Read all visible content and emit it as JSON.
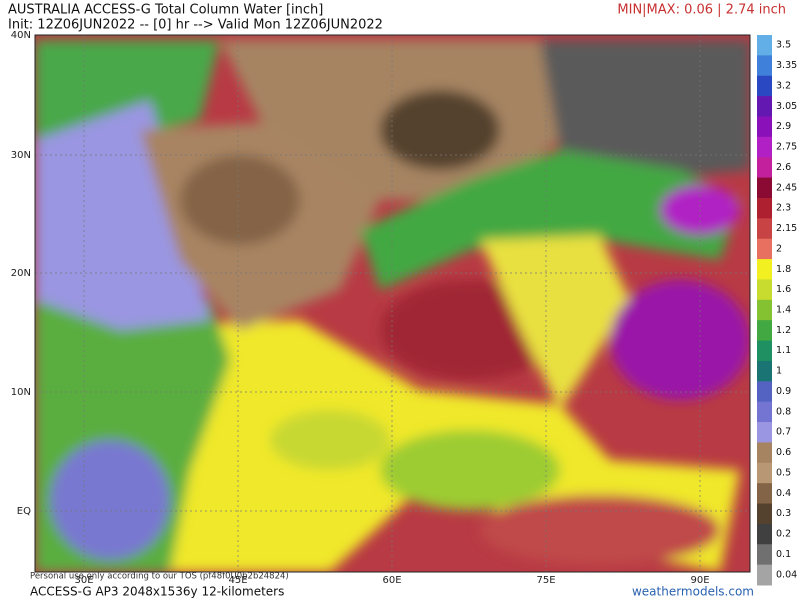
{
  "header": {
    "title": "AUSTRALIA ACCESS-G Total Column Water [inch]",
    "init": "Init: 12Z06JUN2022 -- [0] hr --> Valid Mon 12Z06JUN2022",
    "minmax": "MIN|MAX: 0.06 | 2.74 inch"
  },
  "map": {
    "lat_labels": [
      "40N",
      "30N",
      "20N",
      "10N",
      "EQ"
    ],
    "lon_labels": [
      "30E",
      "45E",
      "60E",
      "75E",
      "90E"
    ]
  },
  "colorbar": [
    {
      "label": 3.5,
      "color": "#62aee6"
    },
    {
      "label": 3.35,
      "color": "#3f80da"
    },
    {
      "label": 3.2,
      "color": "#2a48c2"
    },
    {
      "label": 3.05,
      "color": "#6418b2"
    },
    {
      "label": 2.9,
      "color": "#8a10ba"
    },
    {
      "label": 2.75,
      "color": "#b020c4"
    },
    {
      "label": 2.6,
      "color": "#c2209c"
    },
    {
      "label": 2.45,
      "color": "#8a0a34"
    },
    {
      "label": 2.3,
      "color": "#ae2030"
    },
    {
      "label": 2.15,
      "color": "#c84444"
    },
    {
      "label": 2,
      "color": "#e87060"
    },
    {
      "label": 1.8,
      "color": "#f2f020"
    },
    {
      "label": 1.6,
      "color": "#c8dc30"
    },
    {
      "label": 1.4,
      "color": "#84c232"
    },
    {
      "label": 1.2,
      "color": "#42a842"
    },
    {
      "label": 1.1,
      "color": "#1f9062"
    },
    {
      "label": 1,
      "color": "#1a7474"
    },
    {
      "label": 0.9,
      "color": "#5462c2"
    },
    {
      "label": 0.8,
      "color": "#7474d2"
    },
    {
      "label": 0.7,
      "color": "#9a96e2"
    },
    {
      "label": 0.6,
      "color": "#a68462"
    },
    {
      "label": 0.5,
      "color": "#b89874"
    },
    {
      "label": 0.4,
      "color": "#846446"
    },
    {
      "label": 0.3,
      "color": "#54422e"
    },
    {
      "label": 0.2,
      "color": "#404040"
    },
    {
      "label": 0.1,
      "color": "#707070"
    },
    {
      "label": 0.04,
      "color": "#a4a4a4"
    }
  ],
  "footer": {
    "watermark": "Personal use only according to our TOS (pf48f0U0b2b24824)",
    "model": "ACCESS-G AP3 2048x1536y 12-kilometers",
    "site": "weathermodels.com"
  }
}
